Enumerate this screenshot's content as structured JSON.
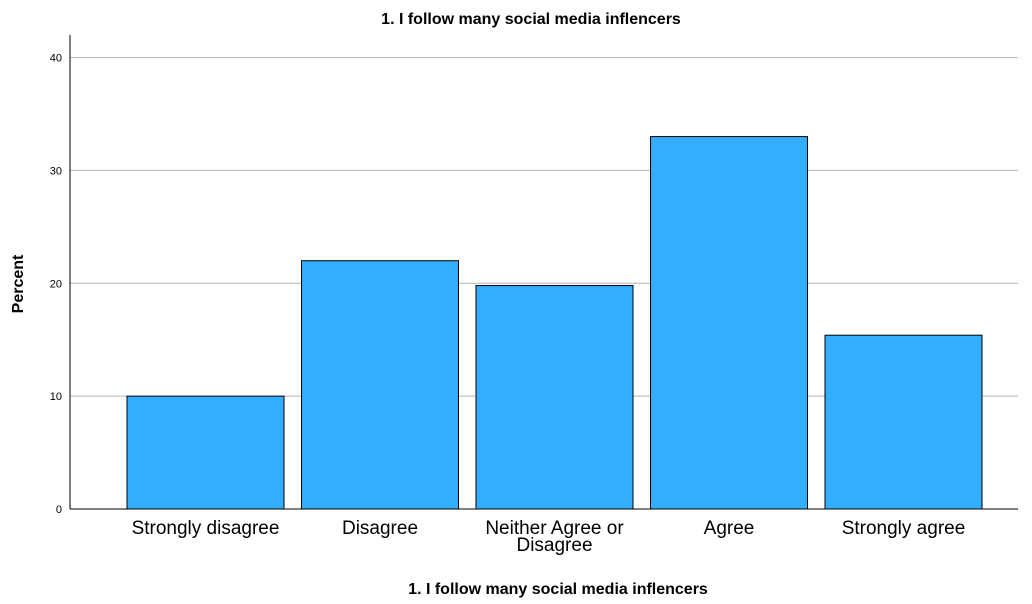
{
  "chart_data": {
    "type": "bar",
    "title": "1. I follow many social media inflencers",
    "xlabel": "1. I follow many social media inflencers",
    "ylabel": "Percent",
    "categories": [
      "Strongly disagree",
      "Disagree",
      "Neither Agree or Disagree",
      "Agree",
      "Strongly agree"
    ],
    "category_lines": [
      [
        "Strongly disagree"
      ],
      [
        "Disagree"
      ],
      [
        "Neither Agree or",
        "Disagree"
      ],
      [
        "Agree"
      ],
      [
        "Strongly agree"
      ]
    ],
    "values": [
      10,
      22,
      19.8,
      33,
      15.4
    ],
    "ylim": [
      0,
      42
    ],
    "yticks": [
      0,
      10,
      20,
      30,
      40
    ],
    "grid": true,
    "bar_color": "#33adff"
  }
}
